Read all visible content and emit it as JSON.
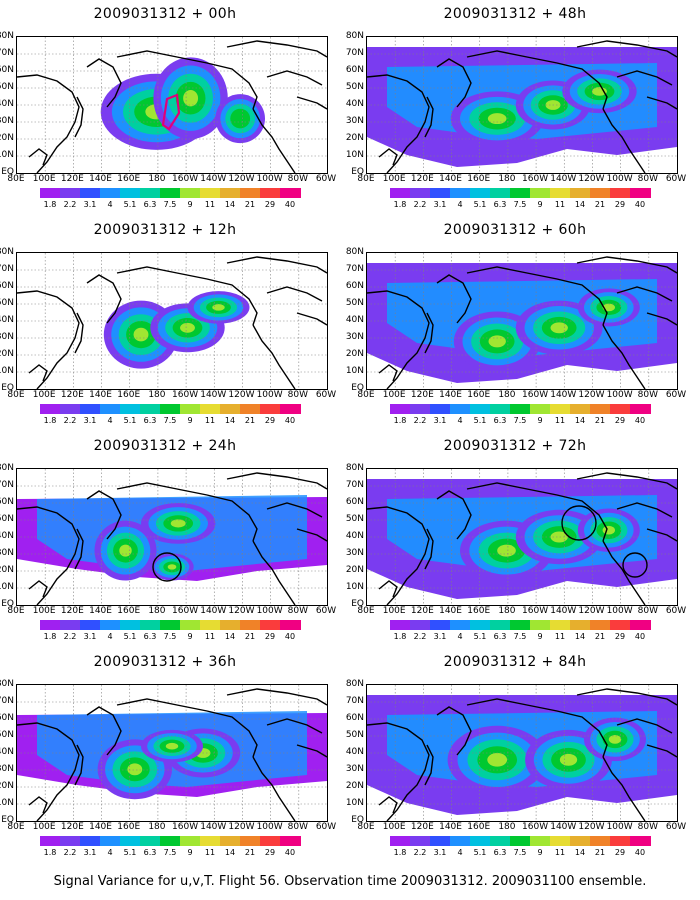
{
  "caption": "Signal Variance for u,v,T. Flight 56. Observation time 2009031312. 2009031100 ensemble.",
  "lat_labels": [
    "80N",
    "70N",
    "60N",
    "50N",
    "40N",
    "30N",
    "20N",
    "10N",
    "EQ"
  ],
  "lon_labels": [
    "80E",
    "100E",
    "120E",
    "140E",
    "160E",
    "180",
    "160W",
    "140W",
    "120W",
    "100W",
    "80W",
    "60W"
  ],
  "colorbar": {
    "ticks": [
      "1.8",
      "2.2",
      "3.1",
      "4",
      "5.1",
      "6.3",
      "7.5",
      "9",
      "11",
      "14",
      "21",
      "29",
      "40"
    ],
    "colors": [
      "#a020f0",
      "#7a3cf0",
      "#3050ff",
      "#1e90ff",
      "#00c0e0",
      "#00d0a0",
      "#00c830",
      "#a0e632",
      "#e6dc32",
      "#e6af2d",
      "#f08228",
      "#fa3c3c",
      "#f00082"
    ]
  },
  "chart_data": [
    {
      "type": "heatmap",
      "title": "2009031312 + 00h",
      "forecast_hour": 0,
      "level": "low",
      "blobs": [
        [
          0.45,
          0.55,
          0.18,
          0.28,
          2
        ],
        [
          0.56,
          0.45,
          0.12,
          0.3,
          4
        ],
        [
          0.72,
          0.6,
          0.08,
          0.18,
          1
        ]
      ],
      "annotations": [
        "magenta contour near 160W 40N"
      ]
    },
    {
      "type": "heatmap",
      "title": "2009031312 + 48h",
      "forecast_hour": 48,
      "level": "high",
      "blobs": [
        [
          0.42,
          0.6,
          0.15,
          0.2,
          4
        ],
        [
          0.6,
          0.5,
          0.12,
          0.18,
          3
        ],
        [
          0.75,
          0.4,
          0.12,
          0.16,
          3
        ]
      ],
      "annotations": []
    },
    {
      "type": "heatmap",
      "title": "2009031312 + 12h",
      "forecast_hour": 12,
      "level": "low",
      "blobs": [
        [
          0.4,
          0.6,
          0.12,
          0.25,
          3
        ],
        [
          0.55,
          0.55,
          0.12,
          0.18,
          4
        ],
        [
          0.65,
          0.4,
          0.1,
          0.12,
          3
        ]
      ],
      "annotations": []
    },
    {
      "type": "heatmap",
      "title": "2009031312 + 60h",
      "forecast_hour": 60,
      "level": "high",
      "blobs": [
        [
          0.42,
          0.65,
          0.14,
          0.22,
          3
        ],
        [
          0.62,
          0.55,
          0.14,
          0.2,
          2
        ],
        [
          0.78,
          0.4,
          0.1,
          0.14,
          2
        ]
      ],
      "annotations": []
    },
    {
      "type": "heatmap",
      "title": "2009031312 + 24h",
      "forecast_hour": 24,
      "level": "mid",
      "blobs": [
        [
          0.35,
          0.6,
          0.1,
          0.22,
          4
        ],
        [
          0.52,
          0.4,
          0.12,
          0.15,
          3
        ],
        [
          0.5,
          0.72,
          0.07,
          0.1,
          3
        ]
      ],
      "annotations": [
        "black circle near 160W 25N"
      ]
    },
    {
      "type": "heatmap",
      "title": "2009031312 + 72h",
      "forecast_hour": 72,
      "level": "high",
      "blobs": [
        [
          0.45,
          0.6,
          0.15,
          0.22,
          3
        ],
        [
          0.62,
          0.5,
          0.14,
          0.2,
          3
        ],
        [
          0.78,
          0.45,
          0.1,
          0.16,
          2
        ]
      ],
      "annotations": [
        "black circle near 130W 45N",
        "black circle near 80W 15N"
      ]
    },
    {
      "type": "heatmap",
      "title": "2009031312 + 36h",
      "forecast_hour": 36,
      "level": "mid",
      "blobs": [
        [
          0.38,
          0.62,
          0.12,
          0.22,
          4
        ],
        [
          0.6,
          0.5,
          0.12,
          0.18,
          3
        ],
        [
          0.5,
          0.45,
          0.1,
          0.12,
          3
        ]
      ],
      "annotations": []
    },
    {
      "type": "heatmap",
      "title": "2009031312 + 84h",
      "forecast_hour": 84,
      "level": "high",
      "blobs": [
        [
          0.42,
          0.55,
          0.16,
          0.25,
          3
        ],
        [
          0.65,
          0.55,
          0.14,
          0.22,
          3
        ],
        [
          0.8,
          0.4,
          0.1,
          0.16,
          2
        ]
      ],
      "annotations": []
    }
  ]
}
